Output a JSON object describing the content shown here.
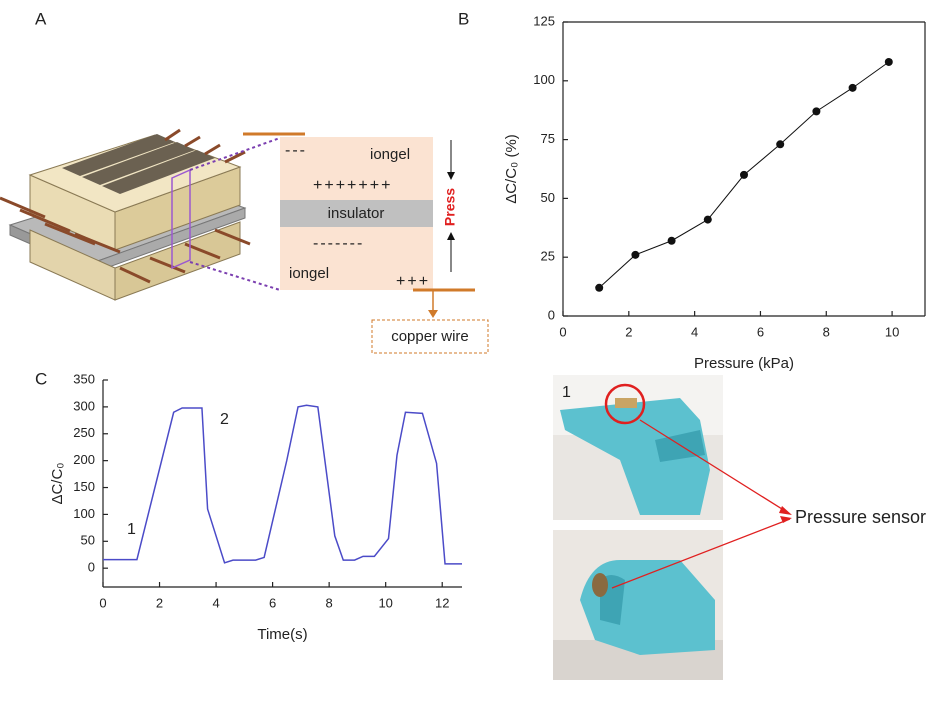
{
  "panels": {
    "a": "A",
    "b": "B",
    "c": "C"
  },
  "diagram": {
    "top_minus": "---",
    "iongel_top": "iongel",
    "plus": "+++++++",
    "insulator": "insulator",
    "minus": "-------",
    "iongel_bottom": "iongel",
    "plus_small": "+++",
    "press": "Press",
    "copper_wire": "copper wire"
  },
  "photos": {
    "label": "1",
    "sensor": "Pressure sensor"
  },
  "chart_data": [
    {
      "type": "line",
      "markers": true,
      "x_label": "Pressure (kPa)",
      "y_label": "ΔC/C₀ (%)",
      "x": [
        1.1,
        2.2,
        3.3,
        4.4,
        5.5,
        6.6,
        7.7,
        8.8,
        9.9
      ],
      "values": [
        12,
        26,
        32,
        41,
        60,
        73,
        87,
        97,
        108
      ],
      "color": "#111111",
      "xlim": [
        0,
        11
      ],
      "ylim": [
        0,
        125
      ],
      "xticks": [
        0,
        2,
        4,
        6,
        8,
        10
      ],
      "yticks": [
        0,
        25,
        50,
        75,
        100,
        125
      ],
      "frame": true
    },
    {
      "type": "line",
      "markers": false,
      "x_label": "Time(s)",
      "y_label": "ΔC/C₀",
      "x": [
        0,
        1.2,
        2.5,
        2.8,
        3.5,
        3.7,
        4.3,
        4.6,
        5.4,
        5.7,
        6.5,
        6.9,
        7.2,
        7.6,
        8.2,
        8.5,
        8.9,
        9.2,
        9.6,
        10.1,
        10.4,
        10.7,
        11.3,
        11.8,
        12.1,
        12.7
      ],
      "values": [
        16,
        16,
        290,
        298,
        298,
        110,
        10,
        15,
        15,
        20,
        200,
        300,
        303,
        300,
        60,
        15,
        15,
        22,
        22,
        55,
        210,
        290,
        288,
        195,
        8,
        8
      ],
      "color": "#4b4bc8",
      "xlim": [
        0,
        12.7
      ],
      "ylim": [
        -35,
        350
      ],
      "xticks": [
        0,
        2,
        4,
        6,
        8,
        10,
        12
      ],
      "yticks": [
        0,
        50,
        100,
        150,
        200,
        250,
        300,
        350
      ],
      "frame": false,
      "annotations": [
        "1",
        "2"
      ]
    }
  ]
}
